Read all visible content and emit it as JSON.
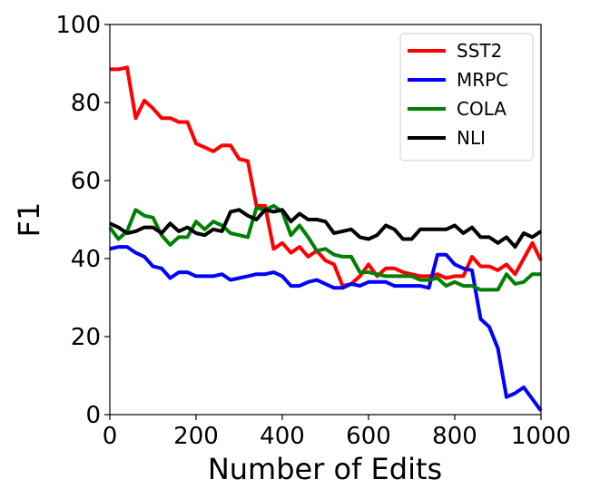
{
  "chart_data": {
    "type": "line",
    "title": "",
    "xlabel": "Number of Edits",
    "ylabel": "F1",
    "xlim": [
      0,
      1000
    ],
    "ylim": [
      0,
      100
    ],
    "xticks": [
      "0",
      "200",
      "400",
      "600",
      "800",
      "1000"
    ],
    "yticks": [
      "0",
      "20",
      "40",
      "60",
      "80",
      "100"
    ],
    "grid": false,
    "legend_position": "top-right",
    "x": [
      0,
      20,
      40,
      60,
      80,
      100,
      120,
      140,
      160,
      180,
      200,
      220,
      240,
      260,
      280,
      300,
      320,
      340,
      360,
      380,
      400,
      420,
      440,
      460,
      480,
      500,
      520,
      540,
      560,
      580,
      600,
      620,
      640,
      660,
      680,
      700,
      720,
      740,
      760,
      780,
      800,
      820,
      840,
      860,
      880,
      900,
      920,
      940,
      960,
      980,
      1000
    ],
    "series": [
      {
        "name": "SST2",
        "color": "#ff0000",
        "values": [
          88.5,
          88.5,
          89,
          76,
          80.5,
          78.5,
          76,
          76,
          75,
          75,
          69.5,
          68.5,
          67.5,
          69,
          69,
          65.5,
          65,
          53.5,
          53.5,
          42.5,
          44,
          41.5,
          43,
          40.5,
          42,
          39.5,
          38.5,
          33,
          33.5,
          35.5,
          38.5,
          35.5,
          37.5,
          37.5,
          36.5,
          36,
          35.5,
          35.5,
          36,
          35,
          35.5,
          35.5,
          40.5,
          38,
          38,
          37,
          38.5,
          36,
          40,
          44,
          39.5
        ]
      },
      {
        "name": "MRPC",
        "color": "#0000ff",
        "values": [
          42.5,
          43,
          43,
          41.5,
          40.5,
          38,
          37.5,
          35,
          36.5,
          36.5,
          35.5,
          35.5,
          35.5,
          36,
          34.5,
          35,
          35.5,
          36,
          36,
          36.5,
          35.5,
          33,
          33,
          34,
          34.5,
          33.5,
          32.5,
          32.5,
          33.5,
          33,
          34,
          34,
          34,
          33,
          33,
          33,
          33,
          32.5,
          41,
          41,
          38.5,
          37.5,
          37,
          24.5,
          22.5,
          17,
          4.5,
          5.5,
          7,
          4,
          1
        ]
      },
      {
        "name": "COLA",
        "color": "#008000",
        "values": [
          48,
          45,
          47,
          52.5,
          51,
          50.5,
          46,
          43.5,
          45.5,
          45.5,
          49.5,
          47.5,
          49.5,
          48.5,
          46.5,
          46,
          45.5,
          53,
          52.5,
          53.5,
          52,
          46,
          48.5,
          45.5,
          42,
          42.5,
          41,
          40.5,
          40.5,
          36.5,
          36.5,
          36,
          35.5,
          35.5,
          35.5,
          35.5,
          34.5,
          34.5,
          35,
          33,
          34,
          33,
          33,
          32,
          32,
          32,
          36,
          33.5,
          34,
          36,
          36
        ]
      },
      {
        "name": "NLI",
        "color": "#000000",
        "values": [
          49,
          48,
          46.5,
          47,
          48,
          48,
          46.5,
          49,
          47,
          48,
          46.5,
          46,
          47.5,
          47,
          52,
          52.5,
          51,
          50,
          52.5,
          52,
          52.5,
          49.5,
          51.5,
          50,
          50,
          49.5,
          46.5,
          47,
          47.5,
          45.5,
          45,
          46,
          48.5,
          47.5,
          45,
          45,
          47.5,
          47.5,
          47.5,
          47.5,
          48.5,
          46.5,
          48,
          45.5,
          45.5,
          44,
          45.5,
          43,
          46.5,
          45.5,
          47
        ]
      }
    ]
  }
}
